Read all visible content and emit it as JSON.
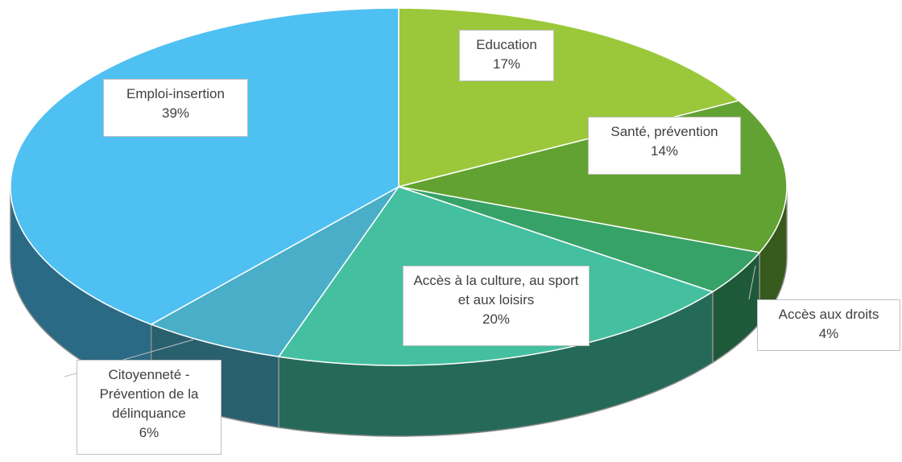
{
  "chart_data": {
    "type": "pie3d",
    "categories": [
      "Education",
      "Santé, prévention",
      "Accès aux droits",
      "Accès à la culture, au sport et aux loisirs",
      "Citoyenneté - Prévention de la délinquance",
      "Emploi-insertion"
    ],
    "values": [
      17,
      14,
      4,
      20,
      6,
      39
    ],
    "value_labels": [
      "17%",
      "14%",
      "4%",
      "20%",
      "6%",
      "39%"
    ],
    "colors": [
      "#9bc83a",
      "#62a232",
      "#36a267",
      "#44c0a0",
      "#4aaec8",
      "#4fc0f2"
    ]
  }
}
